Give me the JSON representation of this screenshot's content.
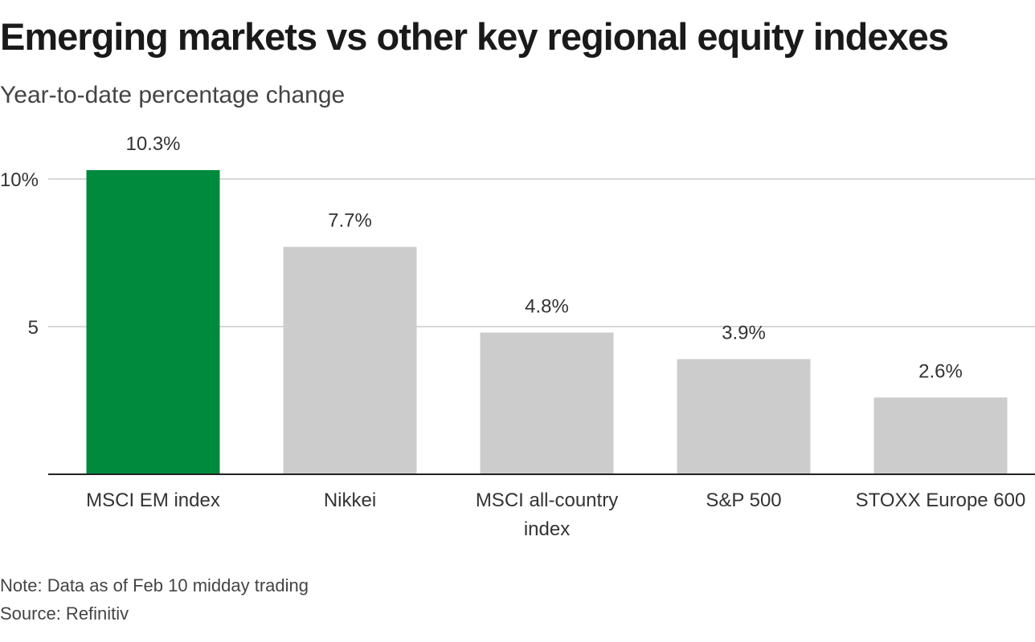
{
  "chart_data": {
    "type": "bar",
    "title": "Emerging markets vs other key regional equity indexes",
    "subtitle": "Year-to-date percentage change",
    "categories": [
      [
        "MSCI EM index"
      ],
      [
        "Nikkei"
      ],
      [
        "MSCI all-country",
        "index"
      ],
      [
        "S&P 500"
      ],
      [
        "STOXX Europe 600"
      ]
    ],
    "values": [
      10.3,
      7.7,
      4.8,
      3.9,
      2.6
    ],
    "data_labels": [
      "10.3%",
      "7.7%",
      "4.8%",
      "3.9%",
      "2.6%"
    ],
    "bar_colors": [
      "#008a3e",
      "#cccccc",
      "#cccccc",
      "#cccccc",
      "#cccccc"
    ],
    "ylim": [
      0,
      10
    ],
    "yticks": [
      {
        "value": 10,
        "label": "10%"
      },
      {
        "value": 5,
        "label": "5"
      }
    ],
    "xlabel": "",
    "ylabel": "",
    "grid": true,
    "colors": {
      "highlight": "#008a3e",
      "default_bar": "#cccccc",
      "gridline": "#cccccc",
      "baseline": "#222222",
      "text": "#333333"
    }
  },
  "footer": {
    "note": "Note: Data as of Feb 10 midday trading",
    "source": "Source: Refinitiv"
  }
}
